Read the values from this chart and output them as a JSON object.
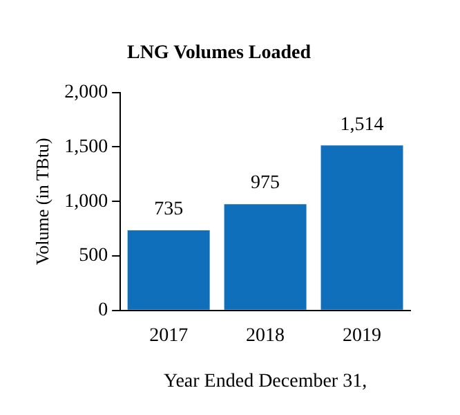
{
  "chart_data": {
    "type": "bar",
    "title": "LNG Volumes Loaded",
    "xlabel": "Year Ended December 31,",
    "ylabel": "Volume (in TBtu)",
    "categories": [
      "2017",
      "2018",
      "2019"
    ],
    "values": [
      735,
      975,
      1514
    ],
    "color": "#0f6fba",
    "value_labels": [
      "735",
      "975",
      "1,514"
    ],
    "ylim": [
      0,
      2000
    ],
    "yticks": [
      0,
      500,
      {
        "value": 1000,
        "label": "1,000"
      },
      {
        "value": 1500,
        "label": "1,500"
      },
      {
        "value": 2000,
        "label": "2,000"
      }
    ],
    "grid": false,
    "legend": false
  }
}
